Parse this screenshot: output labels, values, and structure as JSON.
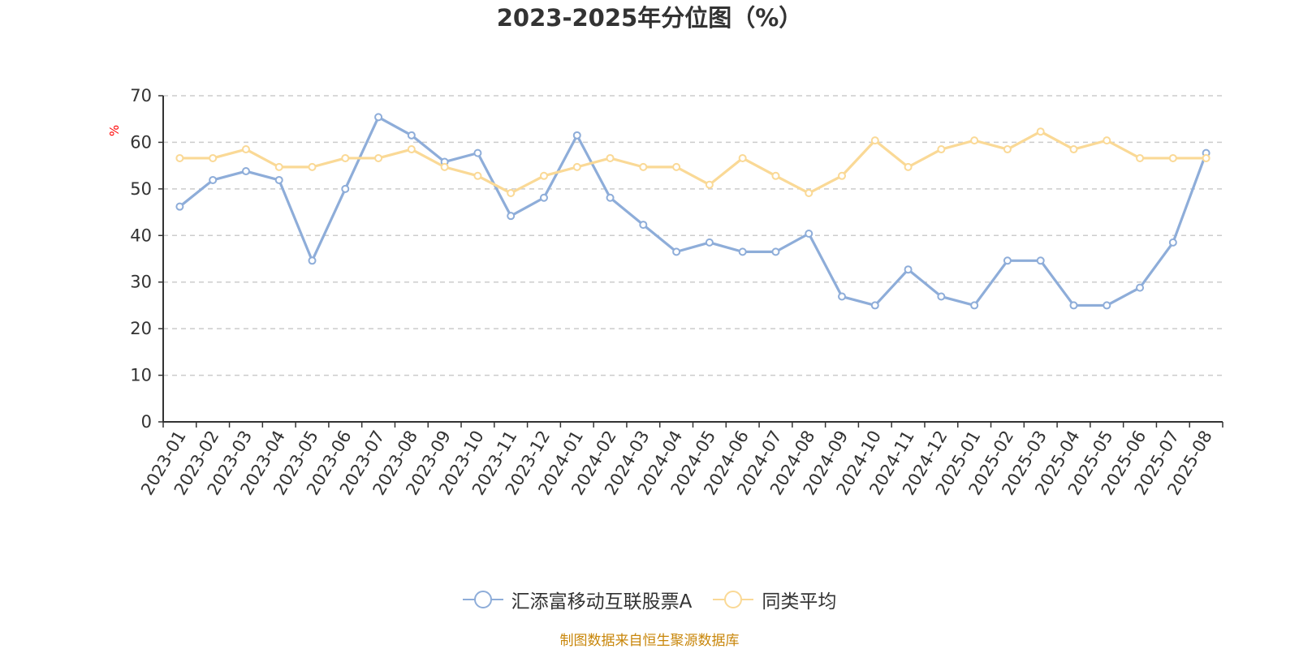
{
  "chart_data": {
    "type": "line",
    "title": "2023-2025年分位图（%）",
    "ylabel": "%",
    "xlabel": "",
    "ylim": [
      0,
      70
    ],
    "yticks": [
      0,
      10,
      20,
      30,
      40,
      50,
      60,
      70
    ],
    "grid": true,
    "legend_position": "bottom",
    "categories": [
      "2023-01",
      "2023-02",
      "2023-03",
      "2023-04",
      "2023-05",
      "2023-06",
      "2023-07",
      "2023-08",
      "2023-09",
      "2023-10",
      "2023-11",
      "2023-12",
      "2024-01",
      "2024-02",
      "2024-03",
      "2024-04",
      "2024-05",
      "2024-06",
      "2024-07",
      "2024-08",
      "2024-09",
      "2024-10",
      "2024-11",
      "2024-12",
      "2025-01",
      "2025-02",
      "2025-03",
      "2025-04",
      "2025-05",
      "2025-06",
      "2025-07",
      "2025-08"
    ],
    "series": [
      {
        "name": "汇添富移动互联股票A",
        "color": "#8eadd9",
        "values": [
          46.2,
          51.9,
          53.8,
          51.9,
          34.6,
          50.0,
          65.4,
          61.5,
          55.8,
          57.7,
          44.2,
          48.1,
          61.5,
          48.1,
          42.3,
          36.5,
          38.5,
          36.5,
          36.5,
          40.4,
          26.9,
          25.0,
          32.7,
          26.9,
          25.0,
          34.6,
          34.6,
          25.0,
          25.0,
          28.8,
          38.5,
          57.7
        ]
      },
      {
        "name": "同类平均",
        "color": "#fad996",
        "values": [
          56.6,
          56.6,
          58.5,
          54.7,
          54.7,
          56.6,
          56.6,
          58.5,
          54.7,
          52.8,
          49.1,
          52.8,
          54.7,
          56.6,
          54.7,
          54.7,
          50.9,
          56.6,
          52.8,
          49.1,
          52.8,
          60.4,
          54.7,
          58.5,
          60.4,
          58.5,
          62.3,
          58.5,
          60.4,
          56.6,
          56.6,
          56.6
        ]
      }
    ]
  },
  "source_note": "制图数据来自恒生聚源数据库"
}
